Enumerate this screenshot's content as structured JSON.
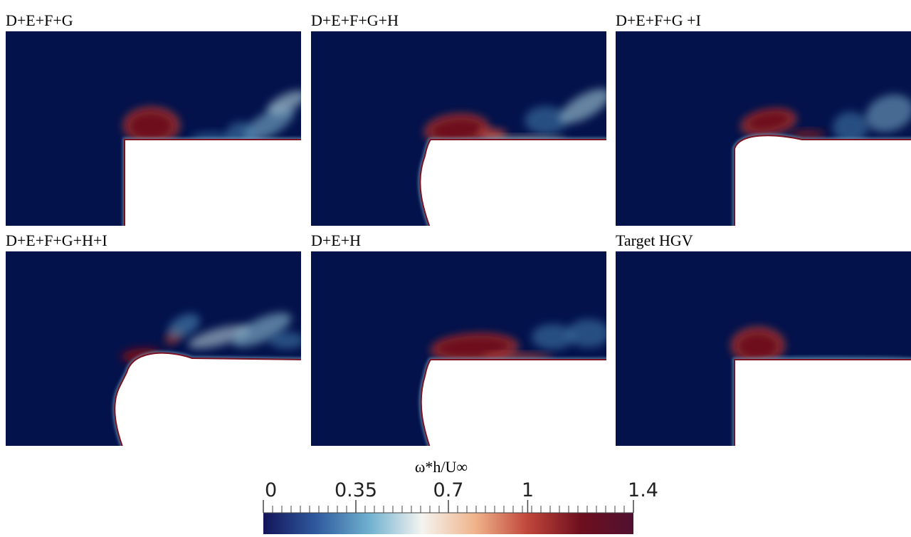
{
  "panels": [
    {
      "title": "D+E+F+G"
    },
    {
      "title": "D+E+F+G+H"
    },
    {
      "title": "D+E+F+G +I"
    },
    {
      "title": "D+E+F+G+H+I"
    },
    {
      "title": "D+E+H"
    },
    {
      "title": "Target HGV"
    }
  ],
  "colorbar": {
    "label": "ω*h/U∞",
    "lim": [
      0,
      1.4
    ],
    "ticks": [
      0,
      0.35,
      0.7,
      1,
      1.4
    ],
    "colors": [
      "#14145a",
      "#2f5a9e",
      "#6fb0cf",
      "#f4f4f0",
      "#f0b48c",
      "#c0463a",
      "#6e0f1e",
      "#501030"
    ]
  }
}
